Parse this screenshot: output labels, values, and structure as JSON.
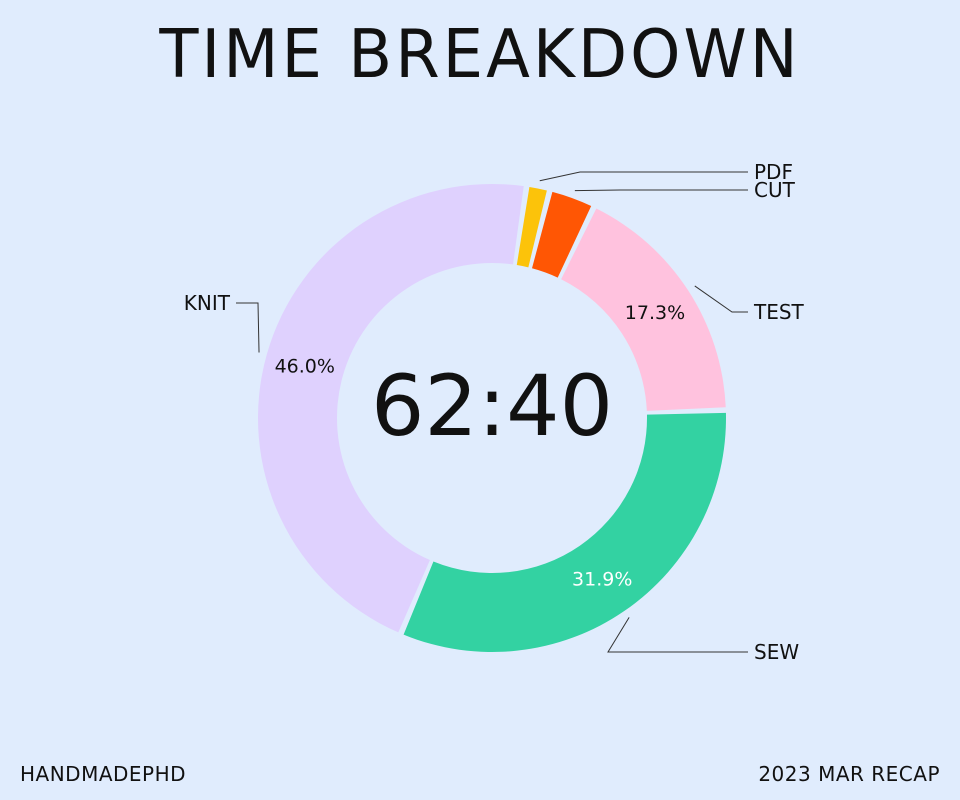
{
  "chart_data": {
    "type": "pie",
    "title": "TIME BREAKDOWN",
    "center_label": "62:40",
    "categories": [
      "PDF",
      "CUT",
      "TEST",
      "SEW",
      "KNIT"
    ],
    "values": [
      1.6,
      3.2,
      17.3,
      31.9,
      46.0
    ],
    "data_labels": [
      "",
      "",
      "17.3%",
      "31.9%",
      "46.0%"
    ],
    "colors": [
      "#fcc30a",
      "#ff5604",
      "#ffc2de",
      "#33d2a2",
      "#dfd1fe"
    ],
    "data_label_colors": [
      "#111111",
      "#111111",
      "#111111",
      "#ffffff",
      "#111111"
    ],
    "donut": true,
    "legend": "callout-labels"
  },
  "footer": {
    "left": "HANDMADEPHD",
    "right": "2023 MAR RECAP"
  }
}
